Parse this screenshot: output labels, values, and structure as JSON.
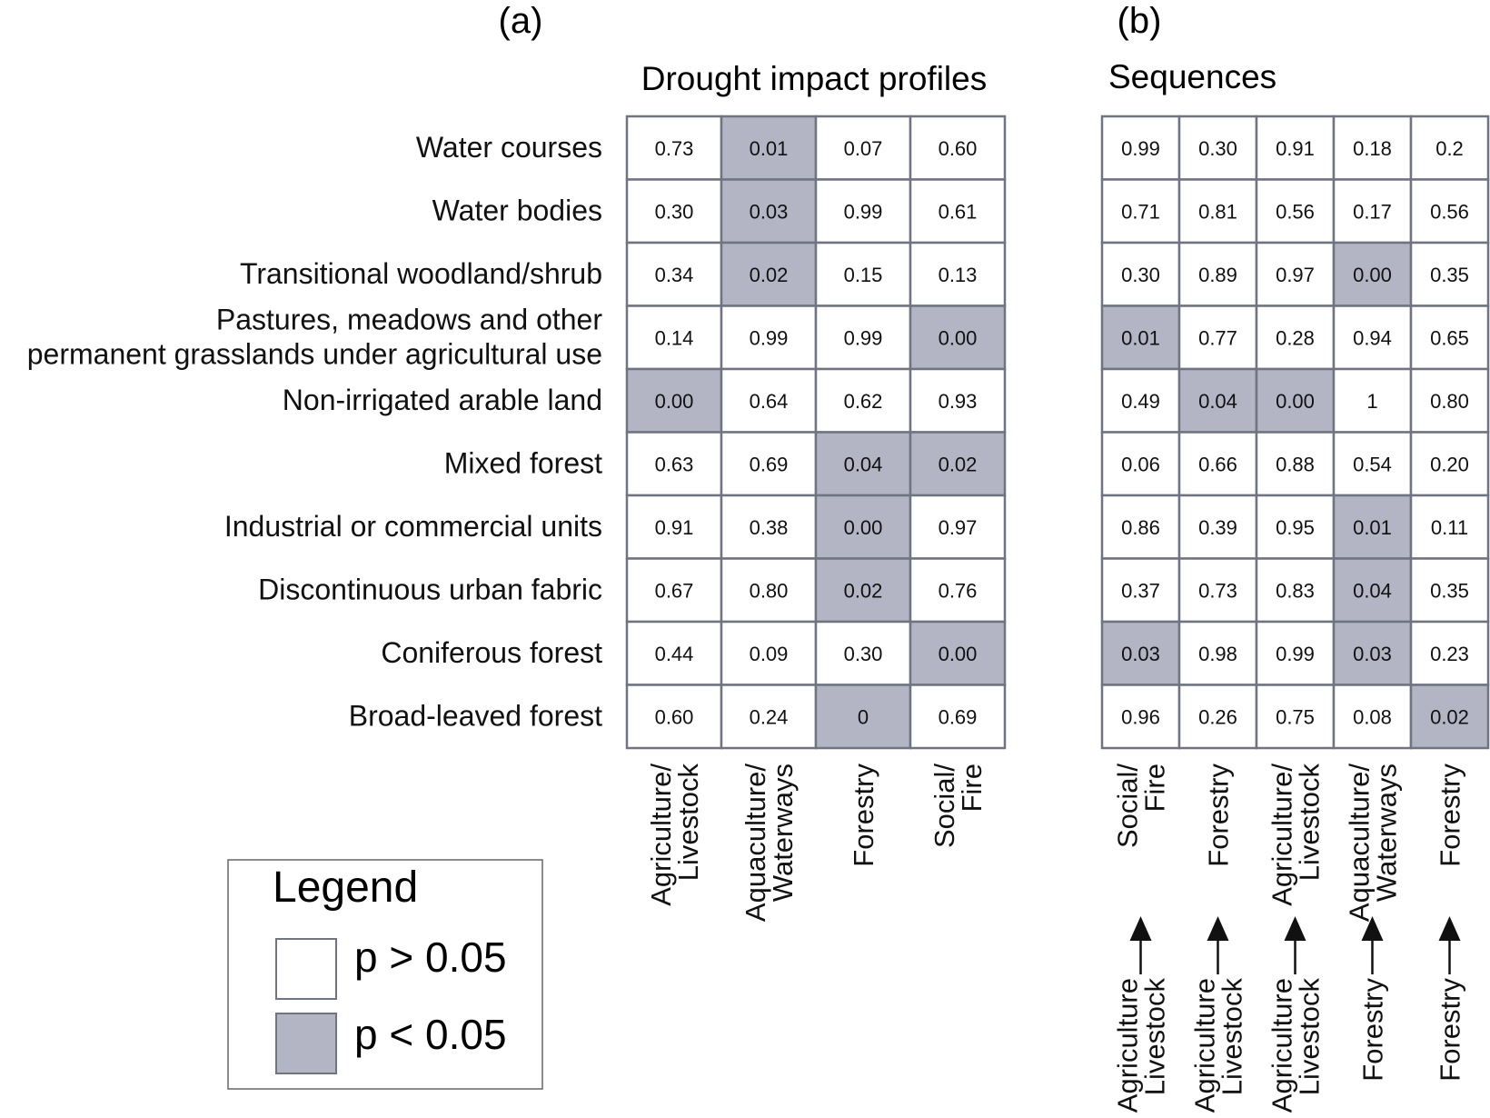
{
  "colors": {
    "significant_fill": "#b3b5c4",
    "grid_line": "#6f7480",
    "text": "#111111"
  },
  "panel_a": {
    "letter": "(a)",
    "title": "Drought impact profiles"
  },
  "panel_b": {
    "letter": "(b)",
    "title": "Sequences"
  },
  "legend": {
    "title": "Legend",
    "not_significant_label": "p > 0.05",
    "significant_label": "p < 0.05"
  },
  "chart_data": [
    {
      "type": "table",
      "panel": "a",
      "title": "Drought impact profiles",
      "significance_threshold": 0.05,
      "rows": [
        "Water courses",
        "Water bodies",
        "Transitional woodland/shrub",
        [
          "Pastures, meadows and other",
          "permanent grasslands under agricultural use"
        ],
        "Non-irrigated arable land",
        "Mixed forest",
        "Industrial or commercial units",
        "Discontinuous urban fabric",
        "Coniferous forest",
        "Broad-leaved forest"
      ],
      "columns": [
        [
          "Agriculture/",
          "Livestock"
        ],
        [
          "Aquaculture/",
          "Waterways"
        ],
        [
          "Forestry"
        ],
        [
          "Social/",
          "Fire"
        ]
      ],
      "values": [
        [
          "0.73",
          "0.01",
          "0.07",
          "0.60"
        ],
        [
          "0.30",
          "0.03",
          "0.99",
          "0.61"
        ],
        [
          "0.34",
          "0.02",
          "0.15",
          "0.13"
        ],
        [
          "0.14",
          "0.99",
          "0.99",
          "0.00"
        ],
        [
          "0.00",
          "0.64",
          "0.62",
          "0.93"
        ],
        [
          "0.63",
          "0.69",
          "0.04",
          "0.02"
        ],
        [
          "0.91",
          "0.38",
          "0.00",
          "0.97"
        ],
        [
          "0.67",
          "0.80",
          "0.02",
          "0.76"
        ],
        [
          "0.44",
          "0.09",
          "0.30",
          "0.00"
        ],
        [
          "0.60",
          "0.24",
          "0",
          "0.69"
        ]
      ]
    },
    {
      "type": "table",
      "panel": "b",
      "title": "Sequences",
      "significance_threshold": 0.05,
      "columns": [
        [
          "Social/",
          "Fire"
        ],
        [
          "Forestry"
        ],
        [
          "Agriculture/",
          "Livestock"
        ],
        [
          "Aquaculture/",
          "Waterways"
        ],
        [
          "Forestry"
        ]
      ],
      "sequence_from": [
        [
          "Agriculture",
          "Livestock"
        ],
        [
          "Agriculture",
          "Livestock"
        ],
        [
          "Agriculture",
          "Livestock"
        ],
        [
          "Forestry"
        ],
        [
          "Forestry"
        ]
      ],
      "values": [
        [
          "0.99",
          "0.30",
          "0.91",
          "0.18",
          "0.2"
        ],
        [
          "0.71",
          "0.81",
          "0.56",
          "0.17",
          "0.56"
        ],
        [
          "0.30",
          "0.89",
          "0.97",
          "0.00",
          "0.35"
        ],
        [
          "0.01",
          "0.77",
          "0.28",
          "0.94",
          "0.65"
        ],
        [
          "0.49",
          "0.04",
          "0.00",
          "1",
          "0.80"
        ],
        [
          "0.06",
          "0.66",
          "0.88",
          "0.54",
          "0.20"
        ],
        [
          "0.86",
          "0.39",
          "0.95",
          "0.01",
          "0.11"
        ],
        [
          "0.37",
          "0.73",
          "0.83",
          "0.04",
          "0.35"
        ],
        [
          "0.03",
          "0.98",
          "0.99",
          "0.03",
          "0.23"
        ],
        [
          "0.96",
          "0.26",
          "0.75",
          "0.08",
          "0.02"
        ]
      ]
    }
  ]
}
